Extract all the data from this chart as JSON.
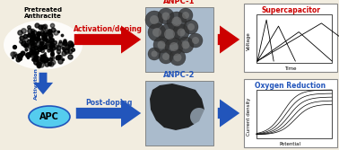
{
  "bg_color": "#f2ede0",
  "title_supercap": "Supercapacitor",
  "title_orr": "Oxygen Reduction",
  "label_anpc1": "ANPC-1",
  "label_anpc2": "ANPC-2",
  "label_anthracite": "Pretreated\nAnthracite",
  "label_apc": "APC",
  "label_act_dop": "Activation/doping",
  "label_post_dop": "Post-doping",
  "label_activation": "Activation",
  "label_voltage": "Voltage",
  "label_time": "Time",
  "label_current": "Current density",
  "label_potential": "Potential",
  "red_color": "#cc0000",
  "blue_color": "#2255bb",
  "light_blue": "#55ccee",
  "arrow_red": "#cc0000",
  "arrow_blue": "#2255bb",
  "anpc1_bg": "#888888",
  "anpc2_bg": "#6688aa"
}
